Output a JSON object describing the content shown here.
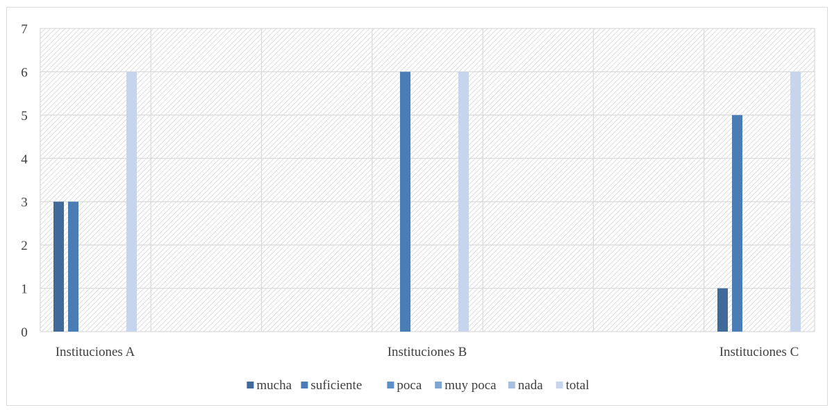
{
  "chart_data": {
    "type": "bar",
    "title": "",
    "xlabel": "",
    "ylabel": "",
    "categories": [
      "Instituciones A",
      "Instituciones B",
      "Instituciones C"
    ],
    "series": [
      {
        "name": "mucha",
        "values": [
          3,
          0,
          1
        ],
        "color": "#3f6a9a"
      },
      {
        "name": "suficiente",
        "values": [
          3,
          6,
          5
        ],
        "color": "#4a7db5"
      },
      {
        "name": "poca",
        "values": [
          0,
          0,
          0
        ],
        "color": "#5a8fc7"
      },
      {
        "name": "muy poca",
        "values": [
          0,
          0,
          0
        ],
        "color": "#7ea6d3"
      },
      {
        "name": "nada",
        "values": [
          0,
          0,
          0
        ],
        "color": "#a7c0e0"
      },
      {
        "name": "total",
        "values": [
          6,
          6,
          6
        ],
        "color": "#c6d5ec"
      }
    ],
    "ylim": [
      0,
      7
    ],
    "yticks": [
      0,
      1,
      2,
      3,
      4,
      5,
      6,
      7
    ],
    "grid": true,
    "legend_position": "bottom"
  }
}
